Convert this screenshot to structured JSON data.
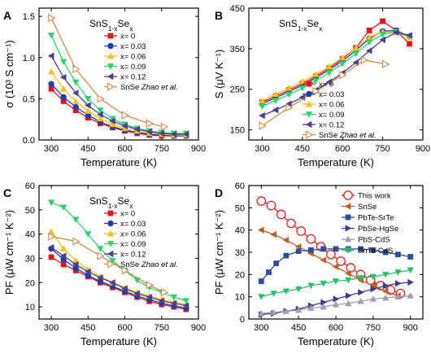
{
  "chart_data": [
    {
      "panel": "A",
      "type": "line",
      "title": "SnS1-xSex",
      "xlabel": "Temperature (K)",
      "ylabel": "σ (10³ S cm⁻¹)",
      "xlim": [
        250,
        900
      ],
      "ylim": [
        0,
        1.6
      ],
      "xticks": [
        300,
        450,
        600,
        750,
        900
      ],
      "yticks": [
        0,
        0.5,
        1.0,
        1.5
      ],
      "ytick_labels": [
        "0.0",
        "0.5",
        "1.0",
        "1.5"
      ],
      "legend_position": "top-right",
      "series": [
        {
          "name": "x= 0",
          "color": "#e3141b",
          "marker": "square",
          "x": [
            300,
            350,
            400,
            450,
            500,
            550,
            600,
            650,
            700,
            750,
            800,
            850
          ],
          "y": [
            0.62,
            0.47,
            0.36,
            0.27,
            0.2,
            0.15,
            0.11,
            0.08,
            0.06,
            0.05,
            0.05,
            0.05
          ]
        },
        {
          "name": "x= 0.03",
          "color": "#1f3ea6",
          "marker": "circle",
          "x": [
            300,
            350,
            400,
            450,
            500,
            550,
            600,
            650,
            700,
            750,
            800,
            850
          ],
          "y": [
            0.68,
            0.52,
            0.4,
            0.3,
            0.22,
            0.16,
            0.12,
            0.09,
            0.07,
            0.06,
            0.05,
            0.05
          ]
        },
        {
          "name": "x= 0.06",
          "color": "#f5c01a",
          "marker": "triangle-up",
          "x": [
            300,
            350,
            400,
            450,
            500,
            550,
            600,
            650,
            700,
            750,
            800,
            850
          ],
          "y": [
            0.83,
            0.62,
            0.47,
            0.35,
            0.26,
            0.19,
            0.14,
            0.11,
            0.08,
            0.07,
            0.06,
            0.06
          ]
        },
        {
          "name": "x= 0.09",
          "color": "#2fcf6f",
          "marker": "triangle-down",
          "x": [
            300,
            350,
            400,
            450,
            500,
            550,
            600,
            650,
            700,
            750,
            800,
            850
          ],
          "y": [
            1.27,
            0.95,
            0.7,
            0.5,
            0.36,
            0.26,
            0.19,
            0.14,
            0.11,
            0.09,
            0.08,
            0.08
          ]
        },
        {
          "name": "x= 0.12",
          "color": "#4b3f8f",
          "marker": "triangle-left",
          "x": [
            300,
            350,
            400,
            450,
            500,
            550,
            600,
            650,
            700,
            750,
            800,
            850
          ],
          "y": [
            1.02,
            0.76,
            0.57,
            0.42,
            0.31,
            0.23,
            0.17,
            0.13,
            0.1,
            0.08,
            0.07,
            0.07
          ]
        },
        {
          "name": "SnSe",
          "color": "#d08a4a",
          "marker": "triangle-right-open",
          "x": [
            300,
            400,
            500,
            600,
            700,
            760
          ],
          "y": [
            1.48,
            0.86,
            0.5,
            0.3,
            0.2,
            0.16
          ]
        }
      ],
      "legend_extra": "Zhao et al."
    },
    {
      "panel": "B",
      "type": "line",
      "title": "SnS1-xSex",
      "xlabel": "Temperature (K)",
      "ylabel": "S (μV K⁻¹)",
      "xlim": [
        250,
        900
      ],
      "ylim": [
        125,
        450
      ],
      "xticks": [
        300,
        450,
        600,
        750,
        900
      ],
      "yticks": [
        150,
        250,
        350,
        450
      ],
      "ytick_labels": [
        "150",
        "250",
        "350",
        "450"
      ],
      "legend_position": "bottom-right",
      "series": [
        {
          "name": "x= 0",
          "color": "#e3141b",
          "marker": "square",
          "x": [
            300,
            350,
            400,
            450,
            500,
            550,
            600,
            650,
            700,
            750,
            800,
            850
          ],
          "y": [
            218,
            233,
            248,
            264,
            282,
            302,
            325,
            352,
            395,
            418,
            395,
            362
          ]
        },
        {
          "name": "x= 0.03",
          "color": "#1f3ea6",
          "marker": "circle",
          "x": [
            300,
            350,
            400,
            450,
            500,
            550,
            600,
            650,
            700,
            750,
            800,
            850
          ],
          "y": [
            214,
            229,
            244,
            260,
            278,
            298,
            320,
            346,
            375,
            393,
            395,
            380
          ]
        },
        {
          "name": "x= 0.06",
          "color": "#f5c01a",
          "marker": "triangle-up",
          "x": [
            300,
            350,
            400,
            450,
            500,
            550,
            600,
            650,
            700,
            750,
            800,
            850
          ],
          "y": [
            222,
            238,
            253,
            269,
            287,
            306,
            328,
            352,
            378,
            392,
            390,
            378
          ]
        },
        {
          "name": "x= 0.09",
          "color": "#2fcf6f",
          "marker": "triangle-down",
          "x": [
            300,
            350,
            400,
            450,
            500,
            550,
            600,
            650,
            700,
            750,
            800,
            850
          ],
          "y": [
            208,
            222,
            237,
            253,
            271,
            291,
            313,
            338,
            366,
            385,
            392,
            380
          ]
        },
        {
          "name": "x= 0.12",
          "color": "#4b3f8f",
          "marker": "triangle-left",
          "x": [
            300,
            350,
            400,
            450,
            500,
            550,
            600,
            650,
            700,
            750,
            800,
            850
          ],
          "y": [
            185,
            199,
            214,
            230,
            248,
            268,
            290,
            316,
            345,
            372,
            390,
            383
          ]
        },
        {
          "name": "SnSe",
          "color": "#d08a4a",
          "marker": "triangle-right-open",
          "x": [
            300,
            400,
            500,
            600,
            680,
            760
          ],
          "y": [
            160,
            205,
            245,
            285,
            322,
            312
          ]
        }
      ],
      "legend_extra": "Zhao et al."
    },
    {
      "panel": "C",
      "type": "line",
      "title": "SnS1-xSex",
      "xlabel": "Temperature (K)",
      "ylabel": "PF (μW cm⁻¹ K⁻²)",
      "xlim": [
        250,
        900
      ],
      "ylim": [
        5,
        60
      ],
      "xticks": [
        300,
        450,
        600,
        750,
        900
      ],
      "yticks": [
        10,
        20,
        30,
        40,
        50,
        60
      ],
      "ytick_labels": [
        "10",
        "20",
        "30",
        "40",
        "50",
        "60"
      ],
      "legend_position": "top-right",
      "series": [
        {
          "name": "x= 0",
          "color": "#e3141b",
          "marker": "square",
          "x": [
            300,
            350,
            400,
            450,
            500,
            550,
            600,
            650,
            700,
            750,
            800,
            850
          ],
          "y": [
            30.5,
            27.5,
            25,
            22.5,
            20,
            18,
            16,
            14,
            12.3,
            11,
            10,
            9
          ]
        },
        {
          "name": "x= 0.03",
          "color": "#1f3ea6",
          "marker": "circle",
          "x": [
            300,
            350,
            400,
            450,
            500,
            550,
            600,
            650,
            700,
            750,
            800,
            850
          ],
          "y": [
            34,
            29.5,
            26,
            23,
            20.5,
            18.5,
            16.5,
            14.5,
            13,
            11.5,
            10.5,
            9.5
          ]
        },
        {
          "name": "x= 0.06",
          "color": "#f5c01a",
          "marker": "triangle-up",
          "x": [
            300,
            350,
            400,
            450,
            500,
            550,
            600,
            650,
            700,
            750,
            800,
            850
          ],
          "y": [
            41,
            34,
            29,
            25.5,
            22.5,
            20,
            18,
            16,
            14.5,
            13,
            12,
            11
          ]
        },
        {
          "name": "x= 0.09",
          "color": "#2fcf6f",
          "marker": "triangle-down",
          "x": [
            300,
            350,
            400,
            450,
            500,
            550,
            600,
            650,
            700,
            750,
            800,
            850
          ],
          "y": [
            53,
            51,
            46,
            40,
            34,
            29,
            25,
            21,
            18,
            16,
            14,
            12.5
          ]
        },
        {
          "name": "x= 0.12",
          "color": "#4b3f8f",
          "marker": "triangle-left",
          "x": [
            300,
            350,
            400,
            450,
            500,
            550,
            600,
            650,
            700,
            750,
            800,
            850
          ],
          "y": [
            34.5,
            31,
            27.5,
            24.5,
            22,
            20,
            17.5,
            15.5,
            14,
            12.5,
            11.5,
            10.5
          ]
        },
        {
          "name": "SnSe",
          "color": "#d08a4a",
          "marker": "triangle-right-open",
          "x": [
            300,
            400,
            500,
            600,
            700,
            760
          ],
          "y": [
            39,
            37,
            31,
            25,
            19,
            16
          ]
        }
      ],
      "legend_extra": "Zhao et al."
    },
    {
      "panel": "D",
      "type": "line",
      "title": "",
      "xlabel": "Temperature (K)",
      "ylabel": "PF (μW cm⁻¹ K⁻²)",
      "xlim": [
        250,
        950
      ],
      "ylim": [
        0,
        60
      ],
      "xticks": [
        300,
        450,
        600,
        750,
        900
      ],
      "yticks": [
        0,
        10,
        20,
        30,
        40,
        50,
        60
      ],
      "ytick_labels": [
        "0",
        "10",
        "20",
        "30",
        "40",
        "50",
        "60"
      ],
      "legend_position": "top-right",
      "series": [
        {
          "name": "This work",
          "color": "#e02020",
          "marker": "circle-open-large",
          "x": [
            300,
            340,
            380,
            420,
            460,
            500,
            540,
            580,
            620,
            660,
            700,
            740,
            780,
            820,
            860
          ],
          "y": [
            53,
            51,
            47,
            43,
            39.5,
            36,
            32.5,
            29,
            26,
            23,
            20,
            17.5,
            15,
            13,
            11.5
          ]
        },
        {
          "name": "SnSe",
          "color": "#b8612a",
          "marker": "triangle-left",
          "x": [
            300,
            350,
            400,
            450,
            500,
            550,
            600,
            650,
            700,
            750,
            800,
            850
          ],
          "y": [
            40,
            38,
            35.5,
            32.5,
            29.5,
            26.5,
            23.5,
            20.5,
            17.5,
            15,
            12.5,
            10.5
          ]
        },
        {
          "name": "PbTe-SrTe",
          "color": "#2d4d9a",
          "marker": "square",
          "x": [
            300,
            330,
            360,
            400,
            450,
            500,
            550,
            600,
            650,
            700,
            750,
            800,
            850,
            900
          ],
          "y": [
            17,
            21,
            25,
            28.5,
            30.5,
            31,
            31.5,
            31.5,
            31.5,
            31.5,
            31,
            30,
            29,
            28
          ]
        },
        {
          "name": "PbSe-HgSe",
          "color": "#3c3c8c",
          "marker": "triangle-right",
          "x": [
            300,
            350,
            400,
            450,
            500,
            550,
            600,
            650,
            700,
            750,
            800,
            850,
            900
          ],
          "y": [
            2,
            2.5,
            3.5,
            4.5,
            6,
            7.5,
            9,
            10.5,
            12,
            13.5,
            15,
            16,
            16.5
          ]
        },
        {
          "name": "PbS-CdS",
          "color": "#9e9eb0",
          "marker": "triangle-up",
          "x": [
            300,
            350,
            400,
            450,
            500,
            550,
            600,
            650,
            700,
            750,
            800,
            850,
            900
          ],
          "y": [
            2.5,
            3,
            3.5,
            4,
            5,
            5.5,
            6.5,
            7,
            8,
            9,
            9.5,
            10,
            10.5
          ]
        },
        {
          "name": "SnTe-CdS",
          "color": "#2cbf6a",
          "marker": "triangle-down",
          "x": [
            300,
            350,
            400,
            450,
            500,
            550,
            600,
            650,
            700,
            750,
            800,
            850,
            900
          ],
          "y": [
            10,
            11.5,
            12.5,
            13.5,
            15,
            16,
            17,
            17.5,
            18.5,
            19,
            20,
            21,
            22
          ]
        }
      ]
    }
  ]
}
